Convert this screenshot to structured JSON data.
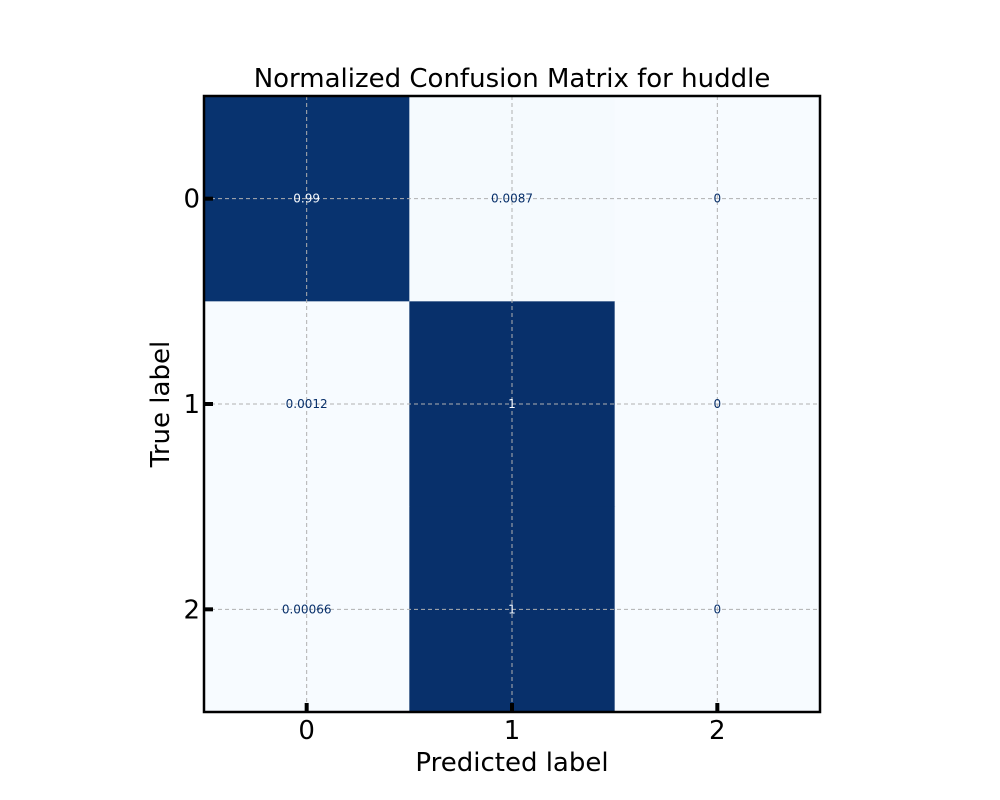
{
  "chart_data": {
    "type": "heatmap",
    "title": "Normalized Confusion Matrix for huddle",
    "xlabel": "Predicted label",
    "ylabel": "True label",
    "x_categories": [
      "0",
      "1",
      "2"
    ],
    "y_categories": [
      "0",
      "1",
      "2"
    ],
    "values": [
      [
        0.99,
        0.0087,
        0
      ],
      [
        0.0012,
        1,
        0
      ],
      [
        0.00066,
        1,
        0
      ]
    ],
    "cell_labels": [
      [
        "0.99",
        "0.0087",
        "0"
      ],
      [
        "0.0012",
        "1",
        "0"
      ],
      [
        "0.00066",
        "1",
        "0"
      ]
    ],
    "color_range": [
      0,
      1
    ],
    "colormap": "Blues",
    "colors": {
      "low": "#f7fbff",
      "high": "#08306b",
      "text_on_dark": "#f7fbff",
      "text_on_light": "#08306b"
    },
    "grid": true
  }
}
